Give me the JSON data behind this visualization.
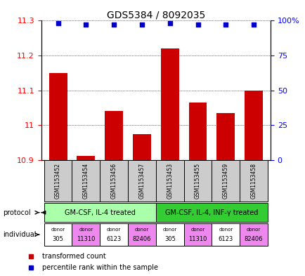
{
  "title": "GDS5384 / 8092035",
  "samples": [
    "GSM1153452",
    "GSM1153454",
    "GSM1153456",
    "GSM1153457",
    "GSM1153453",
    "GSM1153455",
    "GSM1153459",
    "GSM1153458"
  ],
  "bar_values": [
    11.15,
    10.912,
    11.04,
    10.975,
    11.22,
    11.065,
    11.035,
    11.1
  ],
  "percentile_values": [
    98,
    97,
    97,
    97,
    98,
    97,
    97,
    97
  ],
  "bar_color": "#cc0000",
  "dot_color": "#0000cc",
  "ylim_left": [
    10.9,
    11.3
  ],
  "ylim_right": [
    0,
    100
  ],
  "yticks_left": [
    10.9,
    11.0,
    11.1,
    11.2,
    11.3
  ],
  "yticks_right": [
    0,
    25,
    50,
    75,
    100
  ],
  "ytick_labels_right": [
    "0",
    "25",
    "50",
    "75",
    "100%"
  ],
  "protocol_groups": [
    {
      "label": "GM-CSF, IL-4 treated",
      "color": "#aaffaa",
      "indices": [
        0,
        1,
        2,
        3
      ]
    },
    {
      "label": "GM-CSF, IL-4, INF-γ treated",
      "color": "#33cc33",
      "indices": [
        4,
        5,
        6,
        7
      ]
    }
  ],
  "indiv_colors": [
    "#ffffff",
    "#ee88ee",
    "#ffffff",
    "#ee88ee",
    "#ffffff",
    "#ee88ee",
    "#ffffff",
    "#ee88ee"
  ],
  "indiv_labels_top": [
    "donor",
    "donor",
    "donor",
    "donor",
    "donor",
    "donor",
    "donor",
    "donor"
  ],
  "indiv_labels_bot": [
    "305",
    "11310",
    "6123",
    "82406",
    "305",
    "11310",
    "6123",
    "82406"
  ],
  "legend_items": [
    {
      "color": "#cc0000",
      "label": "transformed count"
    },
    {
      "color": "#0000cc",
      "label": "percentile rank within the sample"
    }
  ],
  "bar_width": 0.65,
  "baseline": 10.9,
  "sample_box_color": "#cccccc",
  "sample_text_color": "#000000",
  "fig_width": 4.35,
  "fig_height": 3.93,
  "dpi": 100
}
